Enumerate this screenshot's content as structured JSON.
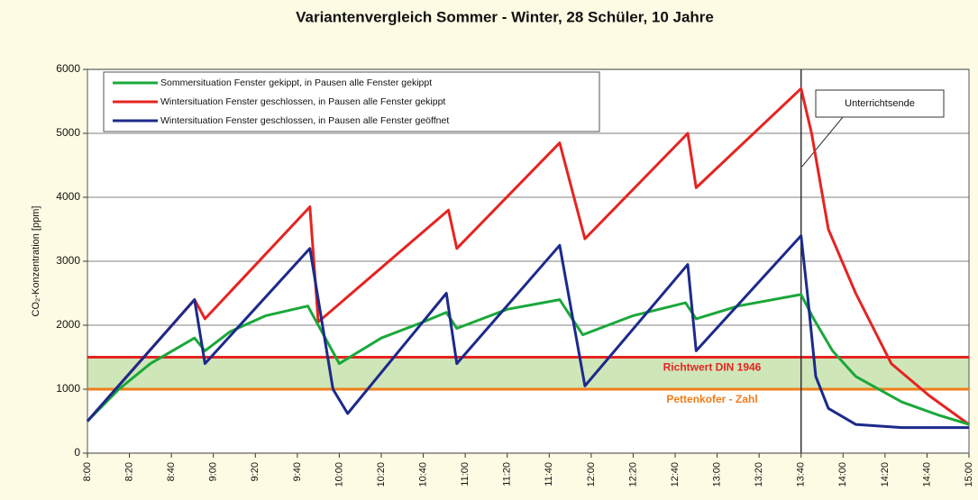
{
  "chart_data": {
    "type": "line",
    "title": "Variantenvergleich Sommer - Winter, 28 Schüler, 10 Jahre",
    "y_label": "CO₂-Konzentration [ppm]",
    "ylim": [
      0,
      6000
    ],
    "yticks": [
      0,
      1000,
      2000,
      3000,
      4000,
      5000,
      6000
    ],
    "xlim": [
      480,
      900
    ],
    "xticks": [
      {
        "value": 480,
        "label": "8:00"
      },
      {
        "value": 500,
        "label": "8:20"
      },
      {
        "value": 520,
        "label": "8:40"
      },
      {
        "value": 540,
        "label": "9:00"
      },
      {
        "value": 560,
        "label": "9:20"
      },
      {
        "value": 580,
        "label": "9:40"
      },
      {
        "value": 600,
        "label": "10:00"
      },
      {
        "value": 620,
        "label": "10:20"
      },
      {
        "value": 640,
        "label": "10:40"
      },
      {
        "value": 660,
        "label": "11:00"
      },
      {
        "value": 680,
        "label": "11:20"
      },
      {
        "value": 700,
        "label": "11:40"
      },
      {
        "value": 720,
        "label": "12:00"
      },
      {
        "value": 740,
        "label": "12:20"
      },
      {
        "value": 760,
        "label": "12:40"
      },
      {
        "value": 780,
        "label": "13:00"
      },
      {
        "value": 800,
        "label": "13:20"
      },
      {
        "value": 820,
        "label": "13:40"
      },
      {
        "value": 840,
        "label": "14:00"
      },
      {
        "value": 860,
        "label": "14:20"
      },
      {
        "value": 880,
        "label": "14:40"
      },
      {
        "value": 900,
        "label": "15:00"
      }
    ],
    "grid": true,
    "legend": "top-left",
    "series": [
      {
        "name": "Sommersituation Fenster gekippt, in Pausen alle Fenster gekippt",
        "color": "#1aa83a",
        "x": [
          480,
          495,
          510,
          531,
          536,
          548,
          565,
          585,
          600,
          620,
          640,
          651,
          656,
          680,
          705,
          716,
          740,
          765,
          770,
          790,
          820,
          826,
          835,
          846,
          868,
          885,
          900
        ],
        "values": [
          500,
          1000,
          1400,
          1800,
          1600,
          1900,
          2150,
          2300,
          1400,
          1800,
          2050,
          2200,
          1950,
          2250,
          2400,
          1850,
          2150,
          2350,
          2100,
          2300,
          2480,
          2100,
          1600,
          1200,
          800,
          600,
          450
        ]
      },
      {
        "name": "Wintersituation Fenster geschlossen, in Pausen alle Fenster gekippt",
        "color": "#e52421",
        "x": [
          480,
          531,
          536,
          586,
          590,
          652,
          656,
          705,
          717,
          766,
          770,
          820,
          825,
          833,
          846,
          863,
          881,
          900
        ],
        "values": [
          500,
          2400,
          2100,
          3850,
          2050,
          3800,
          3200,
          4850,
          3350,
          5000,
          4150,
          5700,
          5000,
          3500,
          2500,
          1400,
          900,
          450
        ]
      },
      {
        "name": "Wintersituation Fenster geschlossen, in Pausen alle Fenster geöffnet",
        "color": "#1c2a8a",
        "x": [
          480,
          531,
          536,
          586,
          597,
          604,
          651,
          656,
          705,
          717,
          766,
          770,
          820,
          823,
          827,
          833,
          846,
          868,
          900
        ],
        "values": [
          500,
          2400,
          1400,
          3200,
          1000,
          620,
          2500,
          1400,
          3250,
          1050,
          2950,
          1600,
          3400,
          2500,
          1200,
          700,
          450,
          400,
          400
        ]
      }
    ],
    "reference_lines": [
      {
        "value": 1500,
        "label": "Richtwert DIN 1946",
        "color": "#e52421"
      },
      {
        "value": 1000,
        "label": "Pettenkofer - Zahl",
        "color": "#f07d1a"
      }
    ],
    "band_color": "#cfe6b8",
    "marker": {
      "x": 820,
      "label": "Unterrichtsende"
    }
  }
}
